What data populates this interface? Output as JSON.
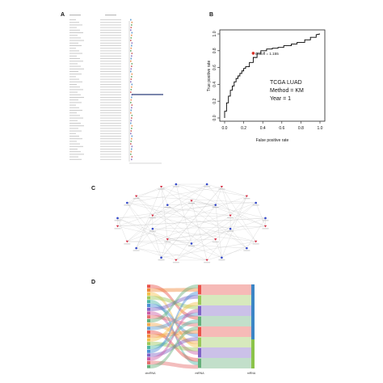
{
  "panels": {
    "a": {
      "letter": "A",
      "rows": 55,
      "blurred_column_headers": true
    },
    "b": {
      "letter": "B",
      "chart_data": {
        "type": "line",
        "title": "",
        "xlabel": "False positive rate",
        "ylabel": "True positive rate",
        "xlim": [
          0,
          1
        ],
        "ylim": [
          0,
          1
        ],
        "xticks": [
          "0.0",
          "0.2",
          "0.4",
          "0.6",
          "0.8",
          "1.0"
        ],
        "yticks": [
          "0.0",
          "0.2",
          "0.4",
          "0.6",
          "0.8",
          "1.0"
        ],
        "series": [
          {
            "x": [
              0.0,
              0.0,
              0.02,
              0.02,
              0.04,
              0.04,
              0.06,
              0.06,
              0.08,
              0.08,
              0.1,
              0.1,
              0.12,
              0.12,
              0.14,
              0.14,
              0.16,
              0.16,
              0.18,
              0.18,
              0.2,
              0.2,
              0.22,
              0.22,
              0.26,
              0.26,
              0.3,
              0.3,
              0.34,
              0.34,
              0.38,
              0.38,
              0.44,
              0.44,
              0.5,
              0.5,
              0.56,
              0.56,
              0.62,
              0.62,
              0.7,
              0.7,
              0.76,
              0.76,
              0.84,
              0.84,
              0.9,
              0.9,
              0.96,
              0.96,
              1.0
            ],
            "y": [
              0.0,
              0.08,
              0.08,
              0.18,
              0.18,
              0.26,
              0.26,
              0.33,
              0.33,
              0.38,
              0.38,
              0.43,
              0.43,
              0.47,
              0.47,
              0.5,
              0.5,
              0.53,
              0.53,
              0.56,
              0.56,
              0.59,
              0.59,
              0.61,
              0.61,
              0.66,
              0.66,
              0.72,
              0.72,
              0.77,
              0.77,
              0.8,
              0.8,
              0.82,
              0.82,
              0.83,
              0.83,
              0.84,
              0.84,
              0.86,
              0.86,
              0.88,
              0.88,
              0.9,
              0.9,
              0.93,
              0.93,
              0.96,
              0.96,
              0.99,
              1.0
            ]
          }
        ],
        "cutoff_point": {
          "x": 0.3,
          "y": 0.77,
          "label": "Cutoff = 1.155"
        },
        "annotations": [
          "TCGA LUAD",
          "Method = KM",
          "Year = 1"
        ]
      }
    },
    "c": {
      "letter": "C",
      "network": "circular"
    },
    "d": {
      "letter": "D",
      "axis_labels": [
        "circRNA",
        "miRNA",
        "mRNA"
      ],
      "legend_label": "mRNA"
    }
  }
}
